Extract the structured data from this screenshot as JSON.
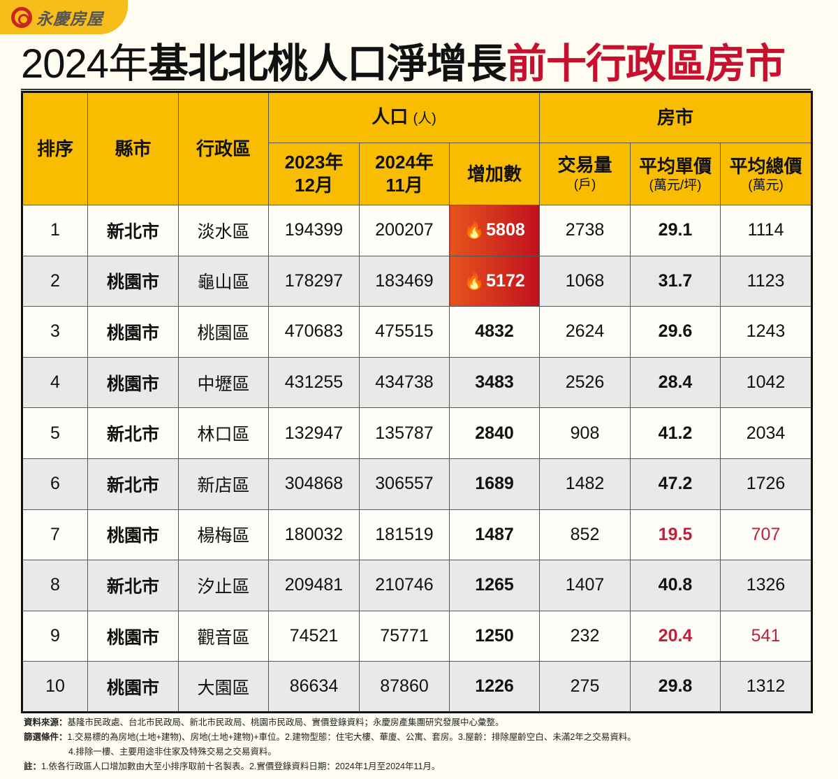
{
  "brand": {
    "logo_text": "永慶房屋",
    "colors": {
      "header": "#f8bd00",
      "accent_red": "#c8102e",
      "hot_cell": "#d2301e"
    }
  },
  "title": {
    "part1": "2024年",
    "part2": "基北北桃人口淨增長",
    "part3": "前十行政區房市"
  },
  "header": {
    "rank": "排序",
    "city": "縣市",
    "district": "行政區",
    "population": "人口",
    "population_unit": "(人)",
    "housing": "房市",
    "pop_2023": [
      "2023年",
      "12月"
    ],
    "pop_2024": [
      "2024年",
      "11月"
    ],
    "increase": "增加數",
    "volume": "交易量",
    "volume_unit": "(戶)",
    "unit_price": "平均單價",
    "unit_price_unit": "(萬元/坪)",
    "total_price": "平均總價",
    "total_price_unit": "(萬元)"
  },
  "chart_data": {
    "type": "table",
    "columns": [
      "排序",
      "縣市",
      "行政區",
      "2023年12月",
      "2024年11月",
      "增加數",
      "交易量(戶)",
      "平均單價(萬元/坪)",
      "平均總價(萬元)"
    ],
    "rows": [
      {
        "rank": "1",
        "city": "新北市",
        "district": "淡水區",
        "pop2023": "194399",
        "pop2024": "200207",
        "increase": "5808",
        "volume": "2738",
        "unit_price": "29.1",
        "total_price": "1114",
        "hot": true,
        "low_price": false
      },
      {
        "rank": "2",
        "city": "桃園市",
        "district": "龜山區",
        "pop2023": "178297",
        "pop2024": "183469",
        "increase": "5172",
        "volume": "1068",
        "unit_price": "31.7",
        "total_price": "1123",
        "hot": true,
        "low_price": false
      },
      {
        "rank": "3",
        "city": "桃園市",
        "district": "桃園區",
        "pop2023": "470683",
        "pop2024": "475515",
        "increase": "4832",
        "volume": "2624",
        "unit_price": "29.6",
        "total_price": "1243",
        "hot": false,
        "low_price": false
      },
      {
        "rank": "4",
        "city": "桃園市",
        "district": "中壢區",
        "pop2023": "431255",
        "pop2024": "434738",
        "increase": "3483",
        "volume": "2526",
        "unit_price": "28.4",
        "total_price": "1042",
        "hot": false,
        "low_price": false
      },
      {
        "rank": "5",
        "city": "新北市",
        "district": "林口區",
        "pop2023": "132947",
        "pop2024": "135787",
        "increase": "2840",
        "volume": "908",
        "unit_price": "41.2",
        "total_price": "2034",
        "hot": false,
        "low_price": false
      },
      {
        "rank": "6",
        "city": "新北市",
        "district": "新店區",
        "pop2023": "304868",
        "pop2024": "306557",
        "increase": "1689",
        "volume": "1482",
        "unit_price": "47.2",
        "total_price": "1726",
        "hot": false,
        "low_price": false
      },
      {
        "rank": "7",
        "city": "桃園市",
        "district": "楊梅區",
        "pop2023": "180032",
        "pop2024": "181519",
        "increase": "1487",
        "volume": "852",
        "unit_price": "19.5",
        "total_price": "707",
        "hot": false,
        "low_price": true
      },
      {
        "rank": "8",
        "city": "新北市",
        "district": "汐止區",
        "pop2023": "209481",
        "pop2024": "210746",
        "increase": "1265",
        "volume": "1407",
        "unit_price": "40.8",
        "total_price": "1326",
        "hot": false,
        "low_price": false
      },
      {
        "rank": "9",
        "city": "桃園市",
        "district": "觀音區",
        "pop2023": "74521",
        "pop2024": "75771",
        "increase": "1250",
        "volume": "232",
        "unit_price": "20.4",
        "total_price": "541",
        "hot": false,
        "low_price": true
      },
      {
        "rank": "10",
        "city": "桃園市",
        "district": "大園區",
        "pop2023": "86634",
        "pop2024": "87860",
        "increase": "1226",
        "volume": "275",
        "unit_price": "29.8",
        "total_price": "1312",
        "hot": false,
        "low_price": false
      }
    ]
  },
  "footer": {
    "source_label": "資料來源：",
    "source": "基隆市民政處、台北市民政局、新北市民政局、桃園市民政局、實價登錄資料；永慶房產集團研究發展中心彙整。",
    "filter_label": "篩選條件：",
    "filter_line1": "1.交易標的為房地(土地+建物)、房地(土地+建物)+車位。2.建物型態：住宅大樓、華廈、公寓、套房。3.屋齡：排除屋齡空白、未滿2年之交易資料。",
    "filter_line2": "4.排除一樓、主要用途非住家及特殊交易之交易資料。",
    "note_label": "註：",
    "note": "1.依各行政區人口增加數由大至小排序取前十名製表。2.實價登錄資料日期：2024年1月至2024年11月。"
  }
}
